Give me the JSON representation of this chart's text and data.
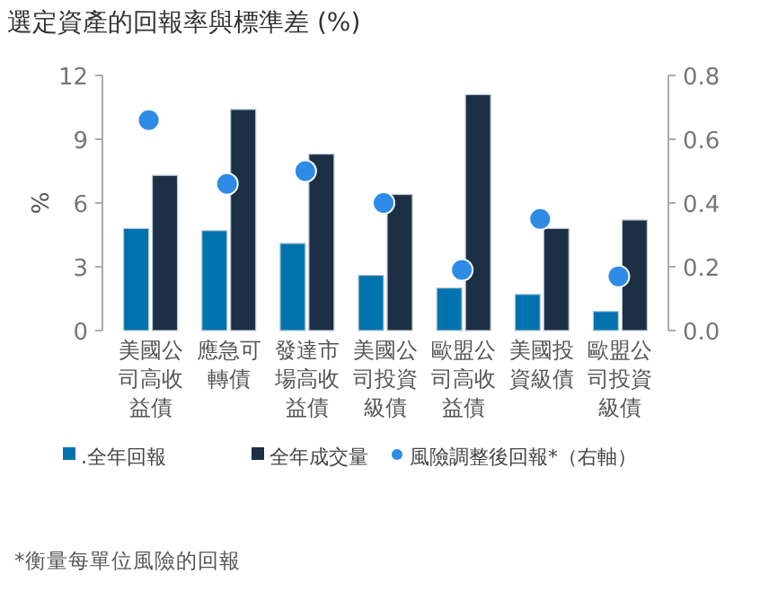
{
  "chart_data": {
    "type": "bar",
    "title": "選定資產的回報率與標準差 (%)",
    "ylabel": "%",
    "categories": [
      "美國公司高收益債",
      "應急可轉債",
      "發達市場高收益債",
      "美國公司投資級債",
      "歐盟公司高收益債",
      "美國投資級債",
      "歐盟公司投資級債"
    ],
    "series": [
      {
        "name": ".全年回報",
        "type": "bar",
        "color": "#0073ae",
        "values": [
          4.8,
          4.7,
          4.1,
          2.6,
          2.0,
          1.7,
          0.9
        ]
      },
      {
        "name": "全年成交量",
        "type": "bar",
        "color": "#1c2f44",
        "values": [
          7.3,
          10.4,
          8.3,
          6.4,
          11.1,
          4.8,
          5.2
        ]
      },
      {
        "name": "風險調整後回報*（右軸）",
        "type": "scatter",
        "axis": "y2",
        "marker": "circle",
        "color": "#2e8be6",
        "values": [
          0.66,
          0.46,
          0.5,
          0.4,
          0.19,
          0.35,
          0.17
        ]
      }
    ],
    "ylim": [
      0,
      12
    ],
    "yticks": [
      0,
      3,
      6,
      9,
      12
    ],
    "y2lim": [
      0,
      0.8
    ],
    "y2ticks": [
      {
        "value": 0,
        "label": "0.0"
      },
      {
        "value": 0.2,
        "label": "0.2"
      },
      {
        "value": 0.4,
        "label": "0.4"
      },
      {
        "value": 0.6,
        "label": "0.6"
      },
      {
        "value": 0.8,
        "label": "0.8"
      }
    ],
    "legend": "bottom",
    "annotations": [
      "*衡量每單位風險的回報"
    ]
  }
}
